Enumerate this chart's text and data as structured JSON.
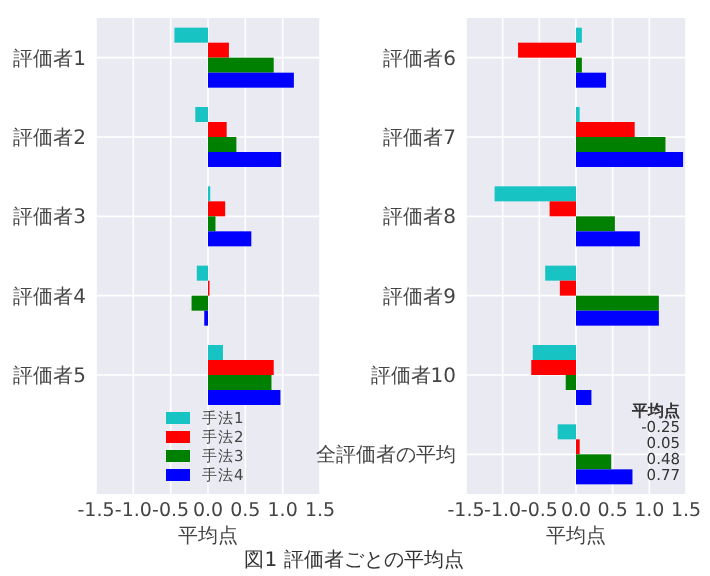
{
  "chart_data": [
    {
      "type": "bar",
      "orientation": "horizontal",
      "categories": [
        "評価者1",
        "評価者2",
        "評価者3",
        "評価者4",
        "評価者5"
      ],
      "series": [
        {
          "name": "手法1",
          "color": "#17c3c3",
          "values": [
            -0.45,
            -0.17,
            0.03,
            -0.15,
            0.2
          ]
        },
        {
          "name": "手法2",
          "color": "#ff0000",
          "values": [
            0.28,
            0.25,
            0.23,
            0.02,
            0.88
          ]
        },
        {
          "name": "手法3",
          "color": "#008000",
          "values": [
            0.88,
            0.38,
            0.1,
            -0.22,
            0.85
          ]
        },
        {
          "name": "手法4",
          "color": "#0000ff",
          "values": [
            1.15,
            0.98,
            0.58,
            -0.05,
            0.97
          ]
        }
      ],
      "xlim": [
        -1.5,
        1.5
      ],
      "xticks": [
        -1.5,
        {
          "value": -1,
          "label": "-1.0"
        },
        -0.5,
        {
          "value": 0,
          "label": "0.0"
        },
        0.5,
        {
          "value": 1,
          "label": "1.0"
        },
        1.5
      ],
      "xlabel": "平均点",
      "grid": true,
      "legend": "bottom",
      "annotations": [
        "図1 評価者ごとの平均点"
      ]
    },
    {
      "type": "bar",
      "orientation": "horizontal",
      "categories": [
        "評価者6",
        "評価者7",
        "評価者8",
        "評価者9",
        "評価者10",
        "全評価者の平均"
      ],
      "series": [
        {
          "color": "#17c3c3",
          "values": [
            0.08,
            0.05,
            -1.11,
            -0.42,
            -0.59,
            -0.25
          ]
        },
        {
          "color": "#ff0000",
          "values": [
            -0.79,
            0.8,
            -0.36,
            -0.22,
            -0.61,
            0.05
          ]
        },
        {
          "color": "#008000",
          "values": [
            0.08,
            1.22,
            0.53,
            1.13,
            -0.14,
            0.48
          ]
        },
        {
          "color": "#0000ff",
          "values": [
            0.41,
            1.46,
            0.87,
            1.13,
            0.21,
            0.77
          ]
        }
      ],
      "xlim": [
        -1.5,
        1.5
      ],
      "xticks": [
        -1.5,
        {
          "value": -1,
          "label": "-1.0"
        },
        -0.5,
        {
          "value": 0,
          "label": "0.0"
        },
        0.5,
        {
          "value": 1,
          "label": "1.0"
        },
        1.5
      ],
      "xlabel": "平均点",
      "grid": true,
      "annotations": [
        "平均点",
        "-0.25",
        "0.05",
        "0.48",
        "0.77"
      ]
    }
  ]
}
